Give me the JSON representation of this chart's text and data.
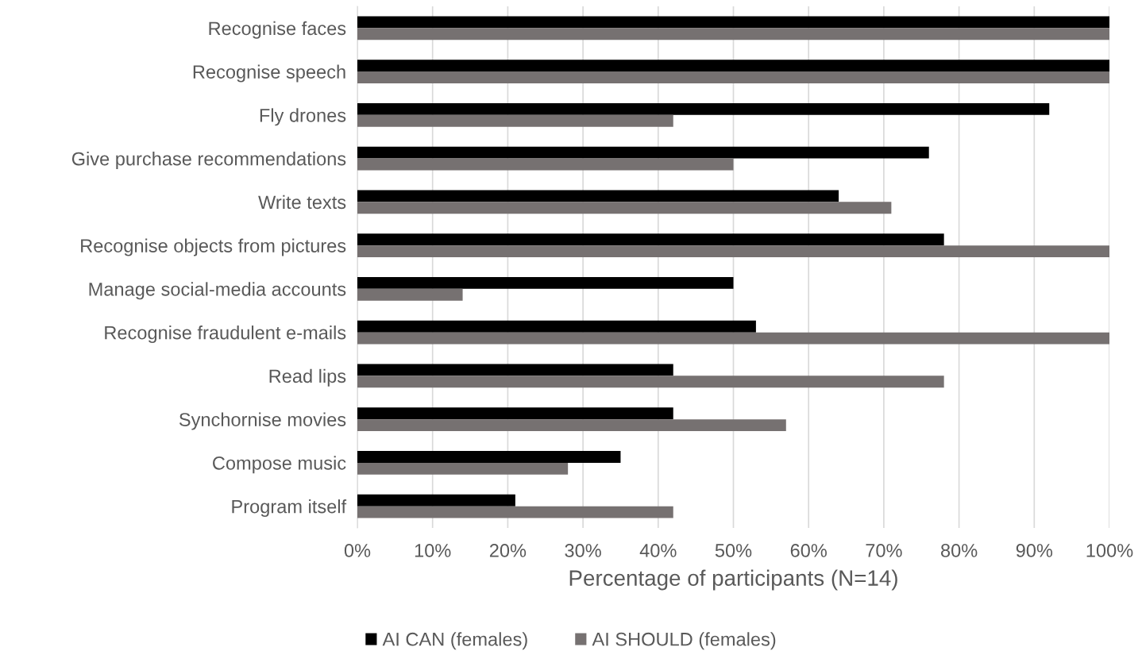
{
  "chart_data": {
    "type": "bar",
    "orientation": "horizontal",
    "xlabel": "Percentage of participants (N=14)",
    "categories": [
      "Recognise faces",
      "Recognise speech",
      "Fly drones",
      "Give purchase recommendations",
      "Write texts",
      "Recognise objects from pictures",
      "Manage social-media accounts",
      "Recognise fraudulent e-mails",
      "Read lips",
      "Synchornise movies",
      "Compose music",
      "Program itself"
    ],
    "series": [
      {
        "name": "AI CAN (females)",
        "color": "#000000",
        "values": [
          100,
          100,
          92,
          76,
          64,
          78,
          50,
          53,
          42,
          42,
          35,
          21
        ]
      },
      {
        "name": "AI SHOULD (females)",
        "color": "#767171",
        "values": [
          100,
          100,
          42,
          50,
          71,
          100,
          14,
          100,
          78,
          57,
          28,
          42
        ]
      }
    ],
    "xlim": [
      0,
      100
    ],
    "xticks": [
      {
        "value": 0,
        "label": "0%"
      },
      {
        "value": 10,
        "label": "10%"
      },
      {
        "value": 20,
        "label": "20%"
      },
      {
        "value": 30,
        "label": "30%"
      },
      {
        "value": 40,
        "label": "40%"
      },
      {
        "value": 50,
        "label": "50%"
      },
      {
        "value": 60,
        "label": "60%"
      },
      {
        "value": 70,
        "label": "70%"
      },
      {
        "value": 80,
        "label": "80%"
      },
      {
        "value": 90,
        "label": "90%"
      },
      {
        "value": 100,
        "label": "100%"
      }
    ],
    "grid": "x",
    "legend": "bottom"
  }
}
